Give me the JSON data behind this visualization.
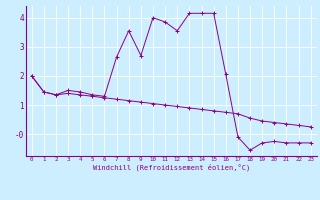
{
  "xlabel": "Windchill (Refroidissement éolien,°C)",
  "bg_color": "#cceeff",
  "line_color": "#880088",
  "xlim": [
    -0.5,
    23.5
  ],
  "ylim": [
    -0.75,
    4.4
  ],
  "yticks": [
    0,
    1,
    2,
    3,
    4
  ],
  "ytick_labels": [
    "-0",
    "1",
    "2",
    "3",
    "4"
  ],
  "xticks": [
    0,
    1,
    2,
    3,
    4,
    5,
    6,
    7,
    8,
    9,
    10,
    11,
    12,
    13,
    14,
    15,
    16,
    17,
    18,
    19,
    20,
    21,
    22,
    23
  ],
  "series1_x": [
    0,
    1,
    2,
    3,
    4,
    5,
    6,
    7,
    8,
    9,
    10,
    11,
    12,
    13,
    14,
    15,
    16,
    17,
    18,
    19,
    20,
    21,
    22,
    23
  ],
  "series1_y": [
    2.0,
    1.45,
    1.35,
    1.4,
    1.35,
    1.3,
    1.25,
    1.2,
    1.15,
    1.1,
    1.05,
    1.0,
    0.95,
    0.9,
    0.85,
    0.8,
    0.75,
    0.7,
    0.55,
    0.45,
    0.4,
    0.35,
    0.3,
    0.25
  ],
  "series2_x": [
    0,
    1,
    2,
    3,
    4,
    5,
    6,
    7,
    8,
    9,
    10,
    11,
    12,
    13,
    14,
    15,
    16,
    17,
    18,
    19,
    20,
    21,
    22,
    23
  ],
  "series2_y": [
    2.0,
    1.45,
    1.35,
    1.5,
    1.45,
    1.35,
    1.3,
    2.65,
    3.55,
    2.7,
    4.0,
    3.85,
    3.55,
    4.15,
    4.15,
    4.15,
    2.05,
    -0.1,
    -0.55,
    -0.3,
    -0.25,
    -0.3,
    -0.3,
    -0.3
  ]
}
